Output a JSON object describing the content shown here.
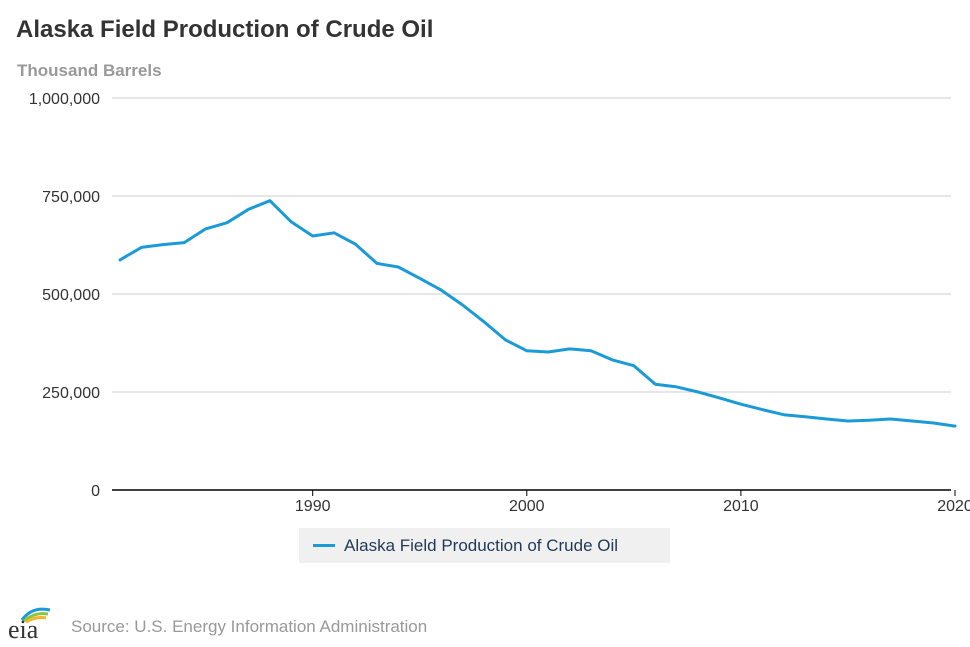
{
  "header": {
    "title": "Alaska Field Production of Crude Oil",
    "units": "Thousand Barrels"
  },
  "footer": {
    "source": "Source: U.S. Energy Information Administration",
    "logo_text": "eia"
  },
  "colors": {
    "series": "#1a9bd7",
    "grid": "#cccccc",
    "axis": "#000000"
  },
  "chart_data": {
    "type": "line",
    "title": "Alaska Field Production of Crude Oil",
    "ylabel": "Thousand Barrels",
    "xlabel": "",
    "xlim": [
      1981,
      2020
    ],
    "ylim": [
      0,
      1000000
    ],
    "x_ticks": [
      1990,
      2000,
      2010,
      2020
    ],
    "y_ticks": [
      0,
      250000,
      500000,
      750000,
      1000000
    ],
    "y_tick_labels": [
      "0",
      "250,000",
      "500,000",
      "750,000",
      "1,000,000"
    ],
    "grid": "horizontal",
    "legend_position": "bottom-center",
    "series": [
      {
        "name": "Alaska Field Production of Crude Oil",
        "x": [
          1981,
          1982,
          1983,
          1984,
          1985,
          1986,
          1987,
          1988,
          1989,
          1990,
          1991,
          1992,
          1993,
          1994,
          1995,
          1996,
          1997,
          1998,
          1999,
          2000,
          2001,
          2002,
          2003,
          2004,
          2005,
          2006,
          2007,
          2008,
          2009,
          2010,
          2011,
          2012,
          2013,
          2014,
          2015,
          2016,
          2017,
          2018,
          2019,
          2020
        ],
        "values": [
          587000,
          619000,
          626000,
          631000,
          666000,
          682000,
          716000,
          738000,
          684000,
          648000,
          656000,
          627000,
          578000,
          569000,
          540000,
          510000,
          472000,
          429000,
          383000,
          355000,
          352000,
          360000,
          355000,
          332000,
          317000,
          270000,
          263000,
          250000,
          235000,
          219000,
          205000,
          192000,
          187000,
          181000,
          176000,
          178000,
          181000,
          176000,
          171000,
          163000
        ]
      }
    ]
  }
}
